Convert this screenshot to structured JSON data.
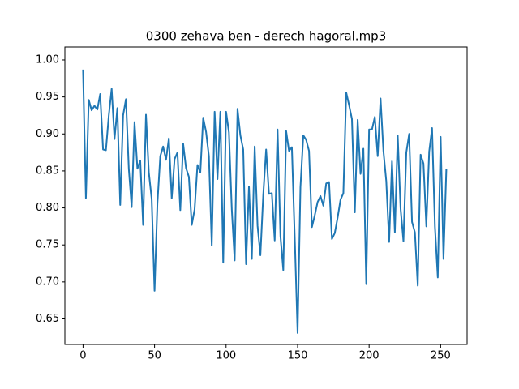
{
  "chart_data": {
    "type": "line",
    "title": "0300 zehava ben - derech hagoral.mp3",
    "color": "#1f77b4",
    "x": [
      0,
      2,
      4,
      6,
      8,
      10,
      12,
      14,
      16,
      18,
      20,
      22,
      24,
      26,
      28,
      30,
      32,
      34,
      36,
      38,
      40,
      42,
      44,
      46,
      48,
      50,
      52,
      54,
      56,
      58,
      60,
      62,
      64,
      66,
      68,
      70,
      72,
      74,
      76,
      78,
      80,
      82,
      84,
      86,
      88,
      90,
      92,
      94,
      96,
      98,
      100,
      102,
      104,
      106,
      108,
      110,
      112,
      114,
      116,
      118,
      120,
      122,
      124,
      126,
      128,
      130,
      132,
      134,
      136,
      138,
      140,
      142,
      144,
      146,
      148,
      150,
      152,
      154,
      156,
      158,
      160,
      162,
      164,
      166,
      168,
      170,
      172,
      174,
      176,
      178,
      180,
      182,
      184,
      186,
      188,
      190,
      192,
      194,
      196,
      198,
      200,
      202,
      204,
      206,
      208,
      210,
      212,
      214,
      216,
      218,
      220,
      222,
      224,
      226,
      228,
      230,
      232,
      234,
      236,
      238,
      240,
      242,
      244,
      246,
      248,
      250,
      252,
      254
    ],
    "values": [
      0.987,
      0.813,
      0.946,
      0.932,
      0.938,
      0.933,
      0.954,
      0.879,
      0.878,
      0.925,
      0.961,
      0.893,
      0.935,
      0.804,
      0.925,
      0.947,
      0.853,
      0.801,
      0.916,
      0.853,
      0.864,
      0.777,
      0.926,
      0.848,
      0.812,
      0.688,
      0.806,
      0.87,
      0.883,
      0.865,
      0.894,
      0.813,
      0.866,
      0.875,
      0.797,
      0.887,
      0.854,
      0.842,
      0.777,
      0.798,
      0.858,
      0.848,
      0.922,
      0.903,
      0.87,
      0.749,
      0.93,
      0.839,
      0.93,
      0.726,
      0.93,
      0.902,
      0.798,
      0.729,
      0.934,
      0.898,
      0.879,
      0.724,
      0.829,
      0.731,
      0.883,
      0.776,
      0.736,
      0.818,
      0.879,
      0.819,
      0.82,
      0.756,
      0.906,
      0.762,
      0.716,
      0.904,
      0.877,
      0.882,
      0.76,
      0.631,
      0.828,
      0.898,
      0.892,
      0.877,
      0.774,
      0.79,
      0.808,
      0.816,
      0.803,
      0.833,
      0.835,
      0.758,
      0.766,
      0.787,
      0.811,
      0.82,
      0.956,
      0.939,
      0.92,
      0.794,
      0.919,
      0.846,
      0.88,
      0.697,
      0.906,
      0.906,
      0.923,
      0.87,
      0.948,
      0.877,
      0.836,
      0.754,
      0.863,
      0.767,
      0.898,
      0.799,
      0.755,
      0.875,
      0.9,
      0.781,
      0.767,
      0.695,
      0.872,
      0.86,
      0.775,
      0.876,
      0.908,
      0.775,
      0.706,
      0.896,
      0.731,
      0.853
    ],
    "xlim": [
      -12.7,
      268.5
    ],
    "xticks": [
      0,
      50,
      100,
      150,
      200,
      250
    ],
    "ylim": [
      0.6155,
      1.0175
    ],
    "yticks": [
      0.65,
      {
        "value": 0.7,
        "label": "0.70"
      },
      0.75,
      {
        "value": 0.8,
        "label": "0.80"
      },
      0.85,
      {
        "value": 0.9,
        "label": "0.90"
      },
      0.95,
      {
        "value": 1.0,
        "label": "1.00"
      }
    ]
  }
}
